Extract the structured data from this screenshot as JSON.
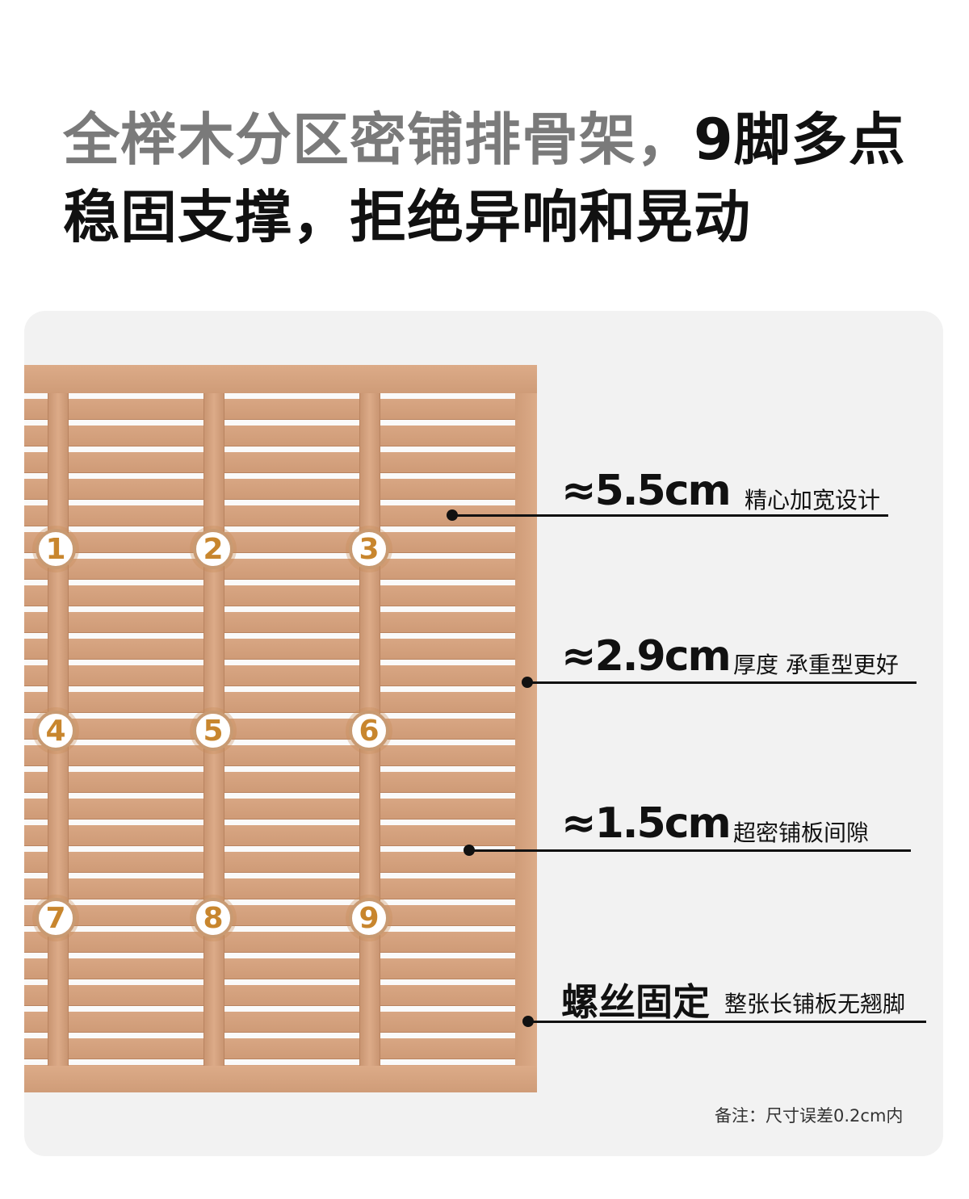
{
  "headline": {
    "line1_gray": "全榉木分区密铺排骨架，",
    "line1_black": "9脚多点",
    "line2": "稳固支撑，拒绝异响和晃动"
  },
  "support_points": [
    "1",
    "2",
    "3",
    "4",
    "5",
    "6",
    "7",
    "8",
    "9"
  ],
  "callouts": [
    {
      "value": "≈5.5cm",
      "desc": "精心加宽设计"
    },
    {
      "value": "≈2.9cm",
      "desc": "厚度 承重型更好"
    },
    {
      "value": "≈1.5cm",
      "desc": "超密铺板间隙"
    },
    {
      "value": "螺丝固定",
      "desc": "整张长铺板无翘脚"
    }
  ],
  "note": "备注：尺寸误差0.2cm内",
  "colors": {
    "wood": "#d9a784",
    "badge_text": "#c8862e",
    "panel": "#f2f2f2"
  }
}
